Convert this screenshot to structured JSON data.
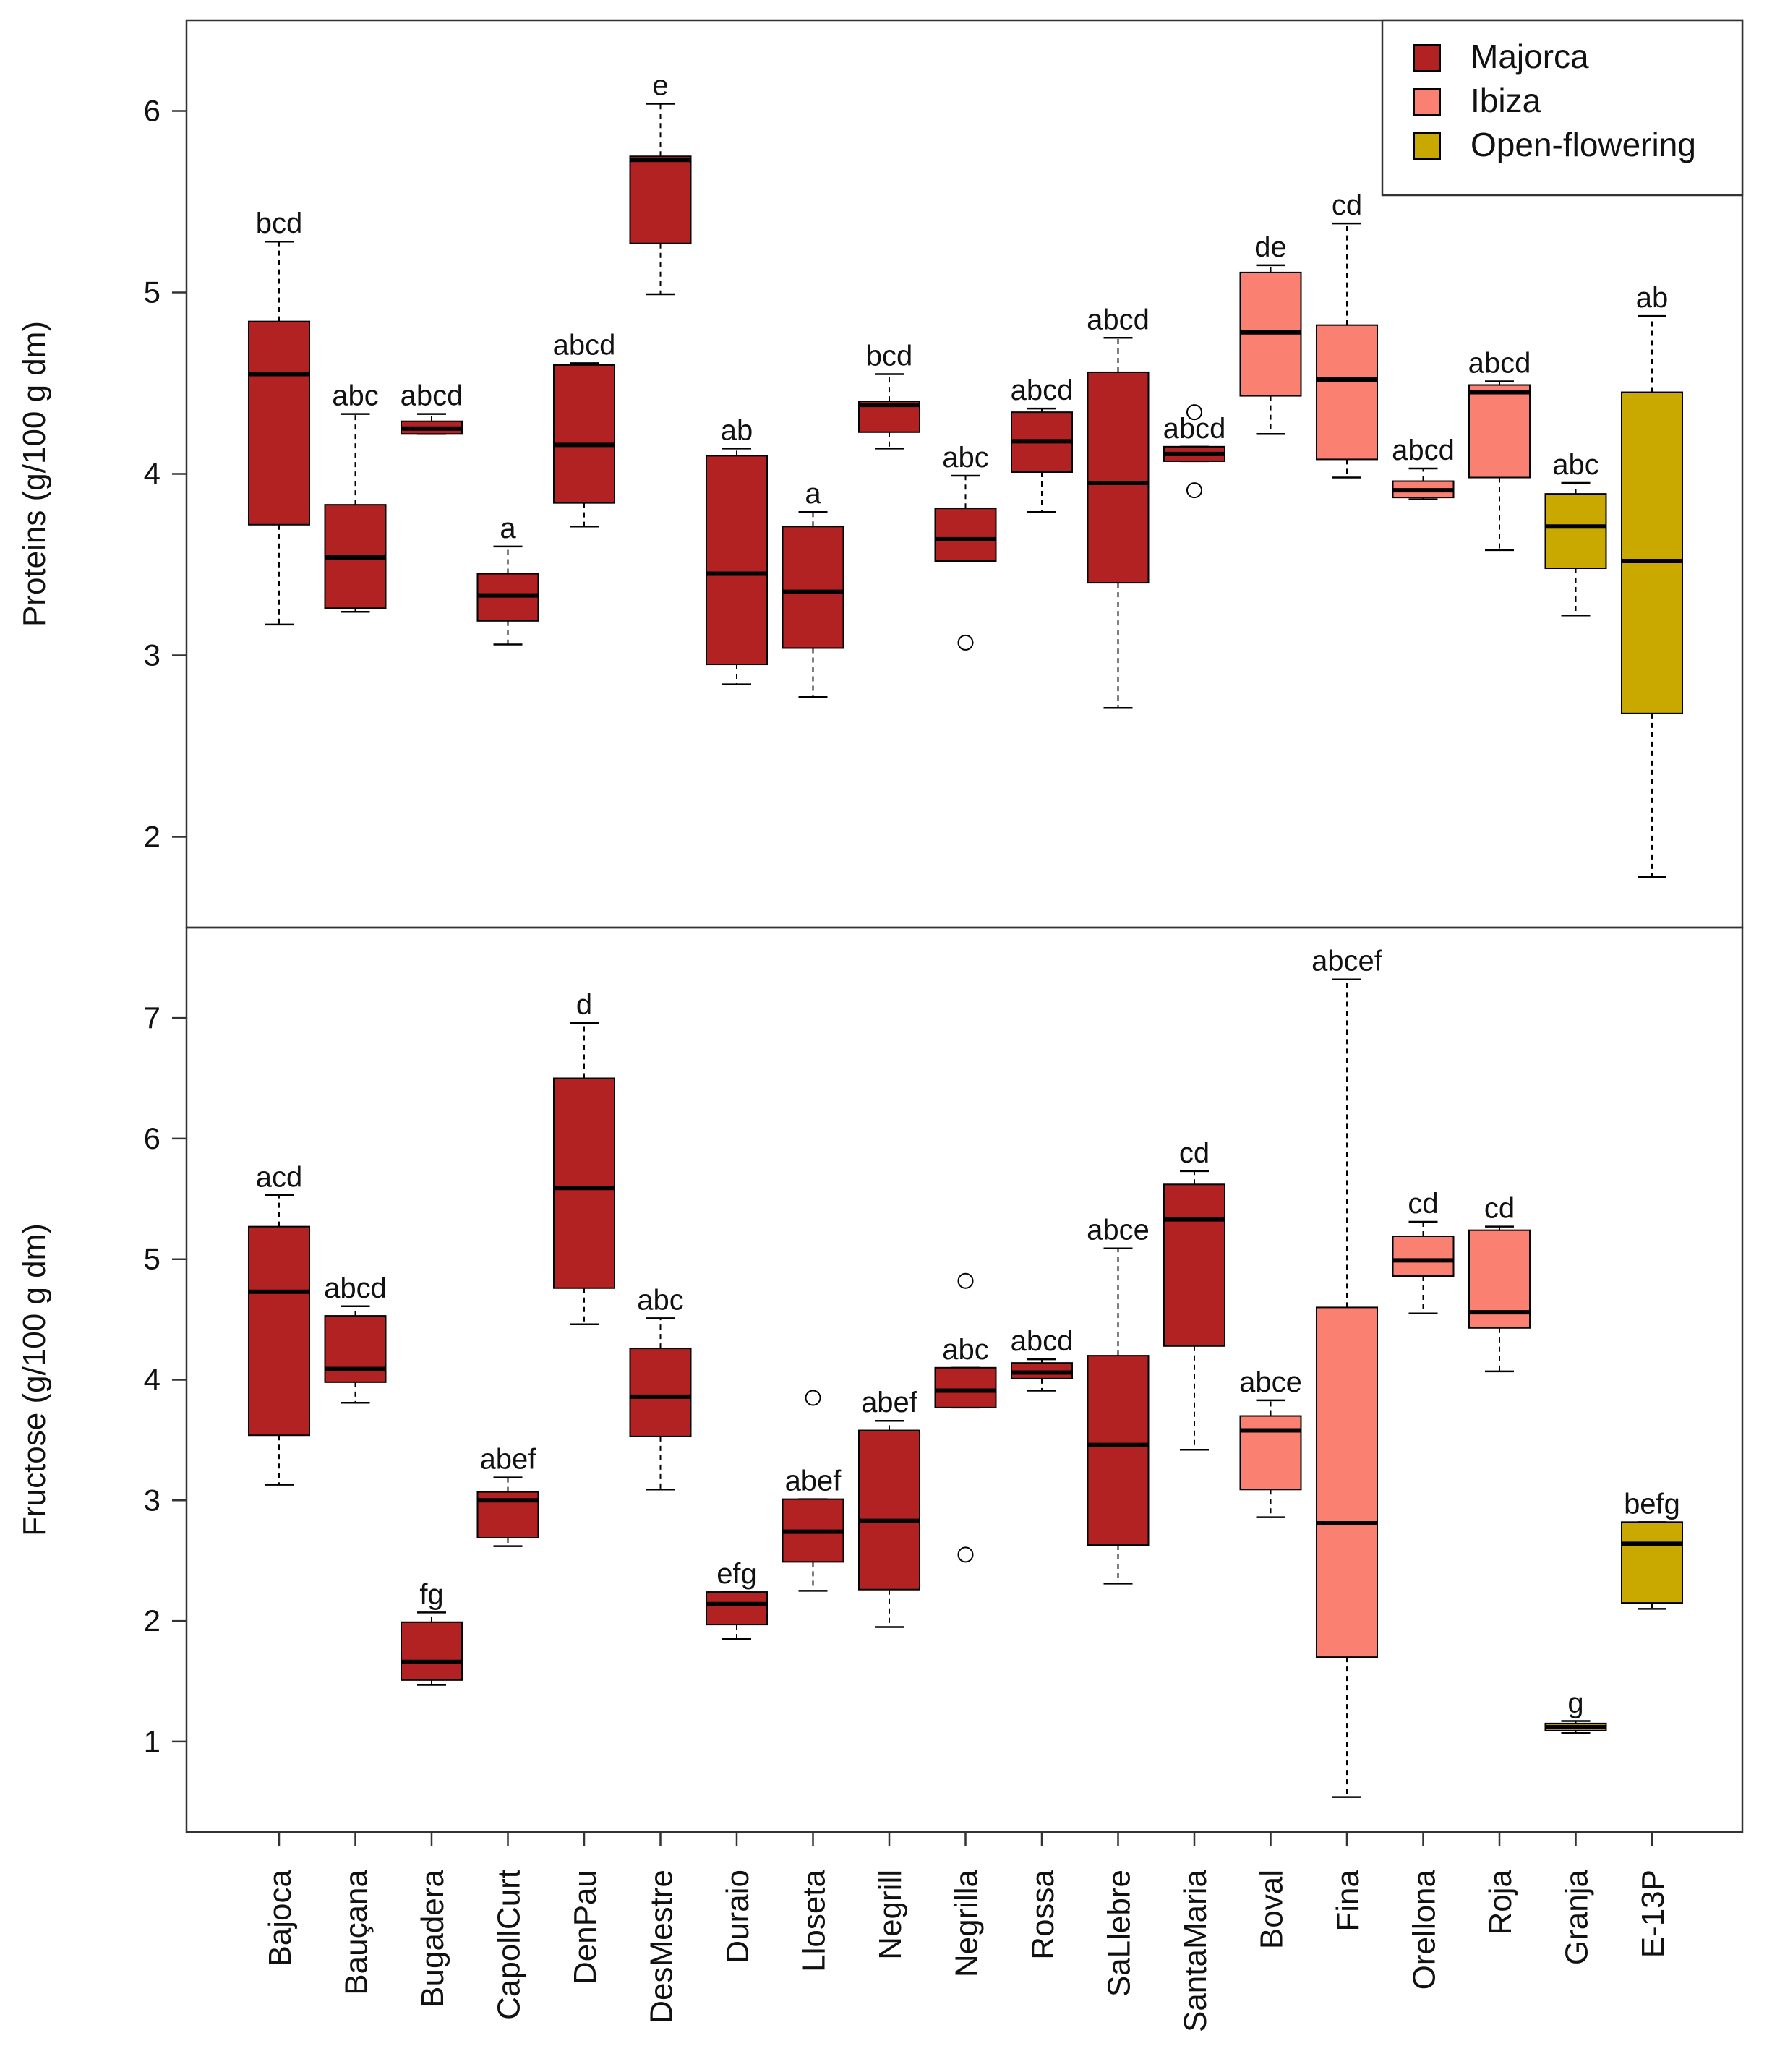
{
  "colors": {
    "Majorca": "#b22222",
    "Ibiza": "#fa8072",
    "Open-flowering": "#c9a800",
    "frame": "#333333",
    "median": "#000000"
  },
  "chart_data": {
    "type": "boxplot",
    "categories": [
      "Bajoca",
      "Bauçana",
      "Bugadera",
      "CapollCurt",
      "DenPau",
      "DesMestre",
      "Duraio",
      "Lloseta",
      "Negrill",
      "Negrilla",
      "Rossa",
      "SaLlebre",
      "SantaMaria",
      "Boval",
      "Fina",
      "Orellona",
      "Roja",
      "Granja",
      "E-13P"
    ],
    "groups": [
      "Majorca",
      "Majorca",
      "Majorca",
      "Majorca",
      "Majorca",
      "Majorca",
      "Majorca",
      "Majorca",
      "Majorca",
      "Majorca",
      "Majorca",
      "Majorca",
      "Majorca",
      "Ibiza",
      "Ibiza",
      "Ibiza",
      "Ibiza",
      "Open-flowering",
      "Open-flowering"
    ],
    "legend": {
      "position": "top-right",
      "entries": [
        "Majorca",
        "Ibiza",
        "Open-flowering"
      ]
    },
    "panels": [
      {
        "name": "proteins",
        "ylabel": "Proteins (g/100 g dm)",
        "ylim": [
          1.5,
          6.5
        ],
        "yticks": [
          "2",
          "3",
          "4",
          "5",
          "6"
        ],
        "series": [
          {
            "category": "Bajoca",
            "min": 3.17,
            "q1": 3.72,
            "median": 4.55,
            "q3": 4.84,
            "max": 5.28,
            "letters": "bcd",
            "outliers": []
          },
          {
            "category": "Bauçana",
            "min": 3.24,
            "q1": 3.26,
            "median": 3.54,
            "q3": 3.83,
            "max": 4.33,
            "letters": "abc",
            "outliers": []
          },
          {
            "category": "Bugadera",
            "min": 4.22,
            "q1": 4.22,
            "median": 4.25,
            "q3": 4.29,
            "max": 4.33,
            "letters": "abcd",
            "outliers": []
          },
          {
            "category": "CapollCurt",
            "min": 3.06,
            "q1": 3.19,
            "median": 3.33,
            "q3": 3.45,
            "max": 3.6,
            "letters": "a",
            "outliers": []
          },
          {
            "category": "DenPau",
            "min": 3.71,
            "q1": 3.84,
            "median": 4.16,
            "q3": 4.6,
            "max": 4.61,
            "letters": "abcd",
            "outliers": []
          },
          {
            "category": "DesMestre",
            "min": 4.99,
            "q1": 5.27,
            "median": 5.73,
            "q3": 5.75,
            "max": 6.04,
            "letters": "e",
            "outliers": []
          },
          {
            "category": "Duraio",
            "min": 2.84,
            "q1": 2.95,
            "median": 3.45,
            "q3": 4.1,
            "max": 4.14,
            "letters": "ab",
            "outliers": []
          },
          {
            "category": "Lloseta",
            "min": 2.77,
            "q1": 3.04,
            "median": 3.35,
            "q3": 3.71,
            "max": 3.79,
            "letters": "a",
            "outliers": []
          },
          {
            "category": "Negrill",
            "min": 4.14,
            "q1": 4.23,
            "median": 4.38,
            "q3": 4.4,
            "max": 4.55,
            "letters": "bcd",
            "outliers": []
          },
          {
            "category": "Negrilla",
            "min": 3.52,
            "q1": 3.52,
            "median": 3.64,
            "q3": 3.81,
            "max": 3.99,
            "letters": "abc",
            "outliers": [
              3.07
            ]
          },
          {
            "category": "Rossa",
            "min": 3.79,
            "q1": 4.01,
            "median": 4.18,
            "q3": 4.34,
            "max": 4.36,
            "letters": "abcd",
            "outliers": []
          },
          {
            "category": "SaLlebre",
            "min": 2.71,
            "q1": 3.4,
            "median": 3.95,
            "q3": 4.56,
            "max": 4.75,
            "letters": "abcd",
            "outliers": []
          },
          {
            "category": "SantaMaria",
            "min": 4.07,
            "q1": 4.07,
            "median": 4.11,
            "q3": 4.15,
            "max": 4.15,
            "letters": "abcd",
            "outliers": [
              4.34,
              3.91
            ]
          },
          {
            "category": "Boval",
            "min": 4.22,
            "q1": 4.43,
            "median": 4.78,
            "q3": 5.11,
            "max": 5.15,
            "letters": "de",
            "outliers": []
          },
          {
            "category": "Fina",
            "min": 3.98,
            "q1": 4.08,
            "median": 4.52,
            "q3": 4.82,
            "max": 5.38,
            "letters": "cd",
            "outliers": []
          },
          {
            "category": "Orellona",
            "min": 3.86,
            "q1": 3.87,
            "median": 3.91,
            "q3": 3.96,
            "max": 4.03,
            "letters": "abcd",
            "outliers": []
          },
          {
            "category": "Roja",
            "min": 3.58,
            "q1": 3.98,
            "median": 4.45,
            "q3": 4.49,
            "max": 4.51,
            "letters": "abcd",
            "outliers": []
          },
          {
            "category": "Granja",
            "min": 3.22,
            "q1": 3.48,
            "median": 3.71,
            "q3": 3.89,
            "max": 3.95,
            "letters": "abc",
            "outliers": []
          },
          {
            "category": "E-13P",
            "min": 1.78,
            "q1": 2.68,
            "median": 3.52,
            "q3": 4.45,
            "max": 4.87,
            "letters": "ab",
            "outliers": []
          }
        ]
      },
      {
        "name": "fructose",
        "ylabel": "Fructose (g/100 g dm)",
        "ylim": [
          0.25,
          7.75
        ],
        "yticks": [
          "1",
          "2",
          "3",
          "4",
          "5",
          "6",
          "7"
        ],
        "series": [
          {
            "category": "Bajoca",
            "min": 3.13,
            "q1": 3.54,
            "median": 4.73,
            "q3": 5.27,
            "max": 5.53,
            "letters": "acd",
            "outliers": []
          },
          {
            "category": "Bauçana",
            "min": 3.81,
            "q1": 3.98,
            "median": 4.09,
            "q3": 4.53,
            "max": 4.61,
            "letters": "abcd",
            "outliers": []
          },
          {
            "category": "Bugadera",
            "min": 1.47,
            "q1": 1.51,
            "median": 1.66,
            "q3": 1.99,
            "max": 2.07,
            "letters": "fg",
            "outliers": []
          },
          {
            "category": "CapollCurt",
            "min": 2.62,
            "q1": 2.69,
            "median": 3.0,
            "q3": 3.07,
            "max": 3.19,
            "letters": "abef",
            "outliers": []
          },
          {
            "category": "DenPau",
            "min": 4.46,
            "q1": 4.76,
            "median": 5.59,
            "q3": 6.5,
            "max": 6.96,
            "letters": "d",
            "outliers": []
          },
          {
            "category": "DesMestre",
            "min": 3.09,
            "q1": 3.53,
            "median": 3.86,
            "q3": 4.26,
            "max": 4.51,
            "letters": "abc",
            "outliers": []
          },
          {
            "category": "Duraio",
            "min": 1.85,
            "q1": 1.97,
            "median": 2.14,
            "q3": 2.24,
            "max": 2.24,
            "letters": "efg",
            "outliers": []
          },
          {
            "category": "Lloseta",
            "min": 2.25,
            "q1": 2.49,
            "median": 2.74,
            "q3": 3.01,
            "max": 3.01,
            "letters": "abef",
            "outliers": [
              3.85
            ]
          },
          {
            "category": "Negrill",
            "min": 1.95,
            "q1": 2.26,
            "median": 2.83,
            "q3": 3.58,
            "max": 3.66,
            "letters": "abef",
            "outliers": []
          },
          {
            "category": "Negrilla",
            "min": 3.77,
            "q1": 3.77,
            "median": 3.91,
            "q3": 4.1,
            "max": 4.1,
            "letters": "abc",
            "outliers": [
              4.82,
              2.55
            ]
          },
          {
            "category": "Rossa",
            "min": 3.91,
            "q1": 4.01,
            "median": 4.06,
            "q3": 4.14,
            "max": 4.17,
            "letters": "abcd",
            "outliers": []
          },
          {
            "category": "SaLlebre",
            "min": 2.31,
            "q1": 2.63,
            "median": 3.46,
            "q3": 4.2,
            "max": 5.09,
            "letters": "abce",
            "outliers": []
          },
          {
            "category": "SantaMaria",
            "min": 3.42,
            "q1": 4.28,
            "median": 5.33,
            "q3": 5.62,
            "max": 5.73,
            "letters": "cd",
            "outliers": []
          },
          {
            "category": "Boval",
            "min": 2.86,
            "q1": 3.09,
            "median": 3.58,
            "q3": 3.7,
            "max": 3.83,
            "letters": "abce",
            "outliers": []
          },
          {
            "category": "Fina",
            "min": 0.54,
            "q1": 1.7,
            "median": 2.81,
            "q3": 4.6,
            "max": 7.32,
            "letters": "abcef",
            "outliers": []
          },
          {
            "category": "Orellona",
            "min": 4.55,
            "q1": 4.86,
            "median": 4.99,
            "q3": 5.19,
            "max": 5.31,
            "letters": "cd",
            "outliers": []
          },
          {
            "category": "Roja",
            "min": 4.07,
            "q1": 4.43,
            "median": 4.56,
            "q3": 5.24,
            "max": 5.27,
            "letters": "cd",
            "outliers": []
          },
          {
            "category": "Granja",
            "min": 1.07,
            "q1": 1.09,
            "median": 1.12,
            "q3": 1.15,
            "max": 1.17,
            "letters": "g",
            "outliers": []
          },
          {
            "category": "E-13P",
            "min": 2.1,
            "q1": 2.15,
            "median": 2.64,
            "q3": 2.82,
            "max": 2.82,
            "letters": "befg",
            "outliers": []
          }
        ]
      }
    ]
  }
}
